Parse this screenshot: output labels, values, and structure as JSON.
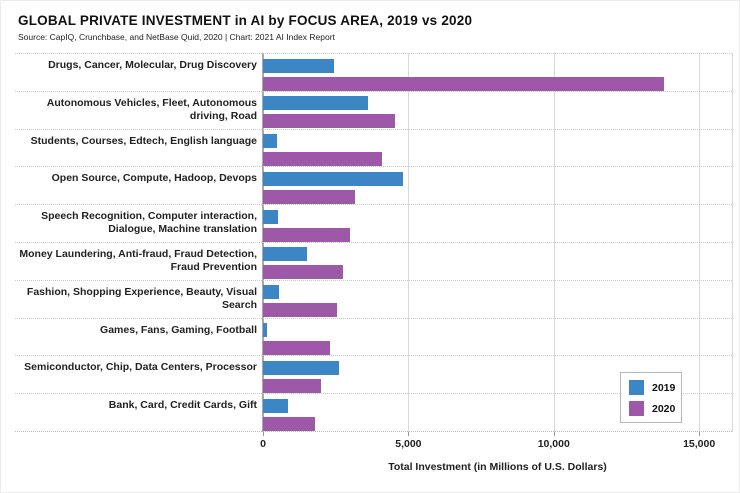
{
  "header": {
    "title": "GLOBAL PRIVATE INVESTMENT in AI by FOCUS AREA, 2019 vs 2020",
    "source": "Source: CapIQ, Crunchbase, and NetBase Quid, 2020 | Chart: 2021 AI Index Report"
  },
  "chart_data": {
    "type": "bar",
    "orientation": "horizontal",
    "title": "GLOBAL PRIVATE INVESTMENT in AI by FOCUS AREA, 2019 vs 2020",
    "xlabel": "Total Investment (in Millions of U.S. Dollars)",
    "xlim": [
      0,
      16130
    ],
    "grid": {
      "vertical_gridlines": true,
      "row_separators": "dotted"
    },
    "legend_position": "bottom-right",
    "categories": [
      "Drugs, Cancer, Molecular, Drug Discovery",
      "Autonomous Vehicles, Fleet, Autonomous driving, Road",
      "Students, Courses, Edtech, English language",
      "Open Source, Compute, Hadoop, Devops",
      "Speech Recognition, Computer interaction, Dialogue, Machine translation",
      "Money Laundering, Anti-fraud, Fraud Detection, Fraud Prevention",
      "Fashion, Shopping Experience, Beauty, Visual Search",
      "Games, Fans, Gaming, Football",
      "Semiconductor, Chip, Data Centers, Processor",
      "Bank, Card, Credit Cards, Gift"
    ],
    "series": [
      {
        "name": "2019",
        "color": "#3d86c6",
        "values": [
          2450,
          3600,
          480,
          4800,
          520,
          1500,
          550,
          140,
          2600,
          850
        ]
      },
      {
        "name": "2020",
        "color": "#9d59a7",
        "values": [
          13800,
          4550,
          4100,
          3150,
          3000,
          2750,
          2550,
          2300,
          2000,
          1800
        ]
      }
    ],
    "xticks": [
      {
        "value": 0,
        "label": "0"
      },
      {
        "value": 5000,
        "label": "5,000"
      },
      {
        "value": 10000,
        "label": "10,000"
      },
      {
        "value": 15000,
        "label": "15,000"
      }
    ]
  },
  "colors": {
    "series_2019": "#3d86c6",
    "series_2020": "#9d59a7",
    "gridline": "#d9d9d9",
    "zero_axis": "#a9a9a9"
  }
}
